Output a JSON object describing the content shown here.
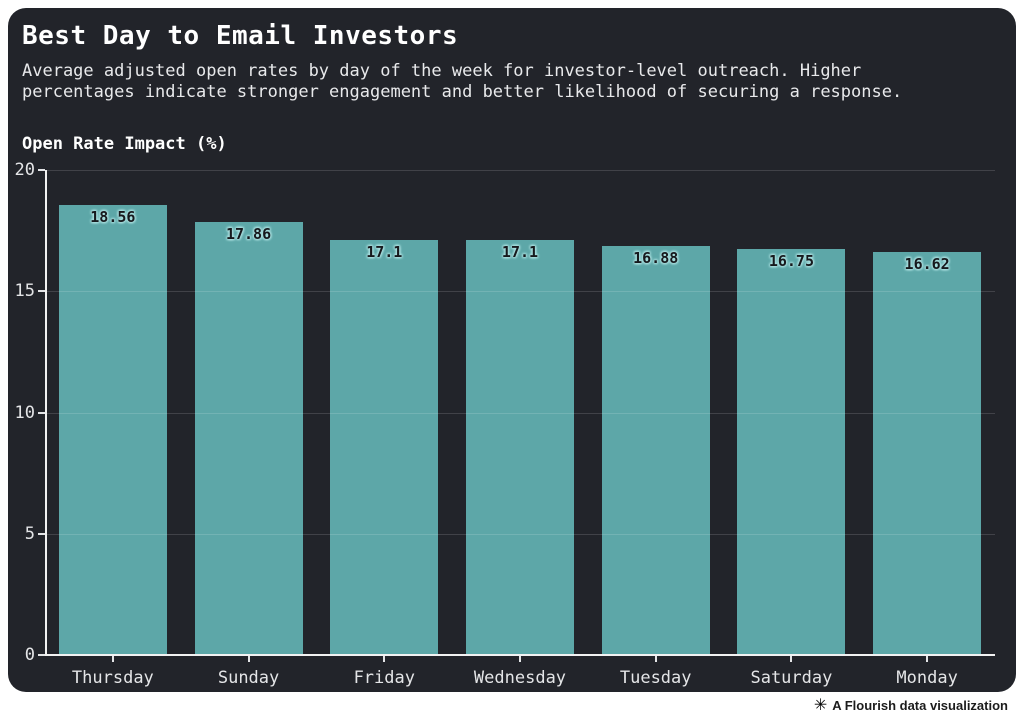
{
  "header": {
    "title": "Best Day to Email Investors",
    "subtitle_line1": "Average adjusted open rates by day of the week for investor-level outreach. Higher",
    "subtitle_line2": "percentages indicate stronger engagement and better likelihood of securing a response.",
    "y_axis_title": "Open Rate Impact (%)"
  },
  "footer": {
    "attribution": "A Flourish data visualization",
    "icon": "flourish-asterisk-icon",
    "icon_glyph": "✳"
  },
  "chart_data": {
    "type": "bar",
    "title": "Best Day to Email Investors",
    "subtitle": "Average adjusted open rates by day of the week for investor-level outreach. Higher percentages indicate stronger engagement and better likelihood of securing a response.",
    "xlabel": "",
    "ylabel": "Open Rate Impact (%)",
    "categories": [
      "Thursday",
      "Sunday",
      "Friday",
      "Wednesday",
      "Tuesday",
      "Saturday",
      "Monday"
    ],
    "values": [
      18.56,
      17.86,
      17.1,
      17.1,
      16.88,
      16.75,
      16.62
    ],
    "value_labels": [
      "18.56",
      "17.86",
      "17.1",
      "17.1",
      "16.88",
      "16.75",
      "16.62"
    ],
    "ylim": [
      0,
      20
    ],
    "y_ticks": [
      0,
      5,
      10,
      15,
      20
    ],
    "grid": true,
    "legend_position": "none",
    "colors": {
      "bar": "#5da7a8",
      "card_background": "#22242a",
      "page_background": "#ffffff",
      "title_text": "#ffffff",
      "subtitle_text": "#e8e9eb",
      "tick_label_text": "#e4e5e7",
      "axis_line": "#f2f2f2",
      "grid_line": "rgba(255,255,255,0.14)",
      "value_label_text": "#17191d",
      "value_label_halo": "#a8dede"
    }
  }
}
